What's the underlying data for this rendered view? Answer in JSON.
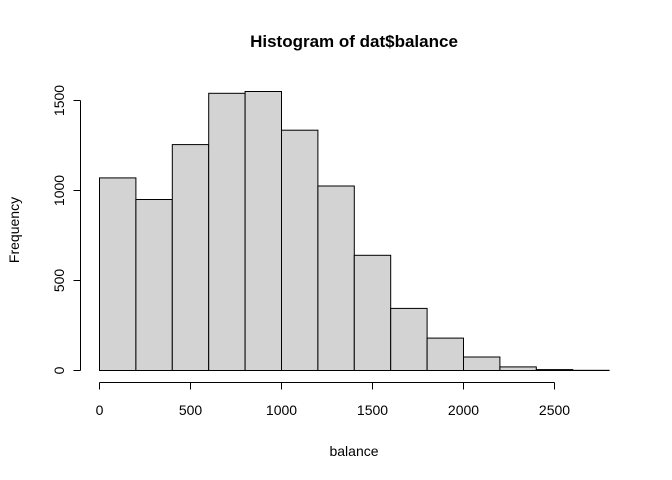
{
  "chart_data": {
    "type": "bar",
    "title": "Histogram of dat$balance",
    "xlabel": "balance",
    "ylabel": "Frequency",
    "bar_color": "#d3d3d3",
    "bins": [
      {
        "start": 0,
        "end": 200,
        "count": 1070
      },
      {
        "start": 200,
        "end": 400,
        "count": 950
      },
      {
        "start": 400,
        "end": 600,
        "count": 1255
      },
      {
        "start": 600,
        "end": 800,
        "count": 1540
      },
      {
        "start": 800,
        "end": 1000,
        "count": 1550
      },
      {
        "start": 1000,
        "end": 1200,
        "count": 1335
      },
      {
        "start": 1200,
        "end": 1400,
        "count": 1025
      },
      {
        "start": 1400,
        "end": 1600,
        "count": 640
      },
      {
        "start": 1600,
        "end": 1800,
        "count": 345
      },
      {
        "start": 1800,
        "end": 2000,
        "count": 180
      },
      {
        "start": 2000,
        "end": 2200,
        "count": 75
      },
      {
        "start": 2200,
        "end": 2400,
        "count": 20
      },
      {
        "start": 2400,
        "end": 2600,
        "count": 5
      },
      {
        "start": 2600,
        "end": 2800,
        "count": 1
      }
    ],
    "xlim": [
      0,
      2800
    ],
    "ylim": [
      0,
      1550
    ],
    "x_ticks": [
      "0",
      "500",
      "1000",
      "1500",
      "2000",
      "2500"
    ],
    "y_ticks": [
      "0",
      "500",
      "1000",
      "1500"
    ]
  }
}
